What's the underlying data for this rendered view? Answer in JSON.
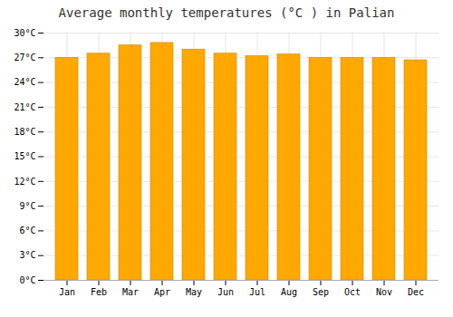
{
  "chart_data": {
    "type": "bar",
    "title": "Average monthly temperatures (°C ) in Palian",
    "categories": [
      "Jan",
      "Feb",
      "Mar",
      "Apr",
      "May",
      "Jun",
      "Jul",
      "Aug",
      "Sep",
      "Oct",
      "Nov",
      "Dec"
    ],
    "values": [
      27.0,
      27.5,
      28.5,
      28.8,
      28.0,
      27.5,
      27.2,
      27.4,
      27.0,
      27.0,
      27.0,
      26.7
    ],
    "color": "#FFA800",
    "ylim": [
      0,
      30
    ],
    "yticks": [
      {
        "value": 0,
        "label": "0°C"
      },
      {
        "value": 3,
        "label": "3°C"
      },
      {
        "value": 6,
        "label": "6°C"
      },
      {
        "value": 9,
        "label": "9°C"
      },
      {
        "value": 12,
        "label": "12°C"
      },
      {
        "value": 15,
        "label": "15°C"
      },
      {
        "value": 18,
        "label": "18°C"
      },
      {
        "value": 21,
        "label": "21°C"
      },
      {
        "value": 24,
        "label": "24°C"
      },
      {
        "value": 27,
        "label": "27°C"
      },
      {
        "value": 30,
        "label": "30°C"
      }
    ],
    "grid": true
  }
}
